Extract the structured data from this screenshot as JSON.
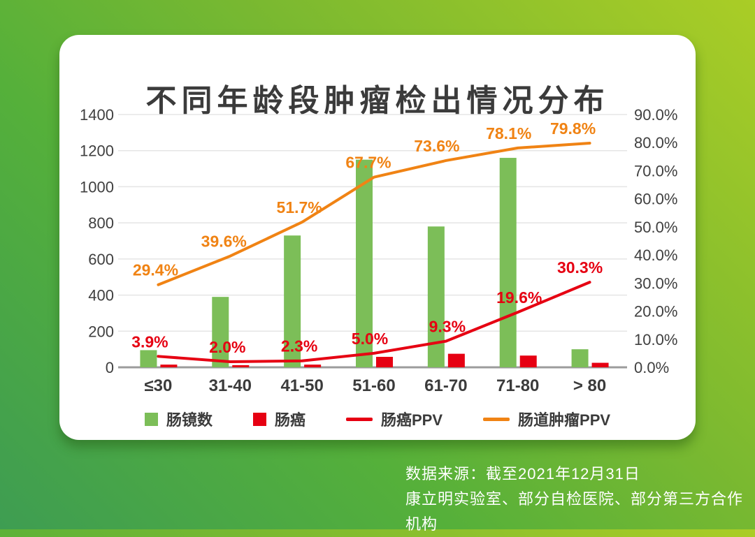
{
  "page": {
    "title": "不同年龄段肿瘤检出情况分布",
    "source_line1": "数据来源：截至2021年12月31日",
    "source_line2": "康立明实验室、部分自检医院、部分第三方合作机构"
  },
  "colors": {
    "background_gradient_start": "#3E9D52",
    "background_gradient_end": "#AACD26",
    "card_background": "#FFFFFF",
    "title_text": "#3B3B3B",
    "axis_text": "#3F3F3F",
    "gridline": "#E5E5E5",
    "baseline": "#9C9C9C",
    "green": "#7CBE58",
    "red": "#E60012",
    "orange": "#F08314"
  },
  "chart_data": {
    "type": "bar",
    "subtype": "combo-bar-line-dual-axis",
    "title": "不同年龄段肿瘤检出情况分布",
    "categories": [
      "≤30",
      "31-40",
      "41-50",
      "51-60",
      "61-70",
      "71-80",
      "> 80"
    ],
    "series": [
      {
        "name": "肠镜数",
        "type": "bar",
        "axis": "left",
        "color": "#7CBE58",
        "values": [
          95,
          390,
          730,
          1150,
          780,
          1160,
          100
        ]
      },
      {
        "name": "肠癌",
        "type": "bar",
        "axis": "left",
        "color": "#E60012",
        "values": [
          15,
          12,
          15,
          58,
          75,
          65,
          25
        ]
      },
      {
        "name": "肠癌PPV",
        "type": "line",
        "axis": "right",
        "color": "#E60012",
        "values": [
          3.9,
          2.0,
          2.3,
          5.0,
          9.3,
          19.6,
          30.3
        ],
        "labels": [
          "3.9%",
          "2.0%",
          "2.3%",
          "5.0%",
          "9.3%",
          "19.6%",
          "30.3%"
        ]
      },
      {
        "name": "肠道肿瘤PPV",
        "type": "line",
        "axis": "right",
        "color": "#F08314",
        "values": [
          29.4,
          39.6,
          51.7,
          67.7,
          73.6,
          78.1,
          79.8
        ],
        "labels": [
          "29.4%",
          "39.6%",
          "51.7%",
          "67.7%",
          "73.6%",
          "78.1%",
          "79.8%"
        ]
      }
    ],
    "left_axis": {
      "min": 0,
      "max": 1400,
      "step": 200,
      "ticks": [
        "0",
        "200",
        "400",
        "600",
        "800",
        "1000",
        "1200",
        "1400"
      ]
    },
    "right_axis": {
      "min": 0,
      "max": 90,
      "step": 10,
      "ticks": [
        "0.0%",
        "10.0%",
        "20.0%",
        "30.0%",
        "40.0%",
        "50.0%",
        "60.0%",
        "70.0%",
        "80.0%",
        "90.0%"
      ]
    },
    "grid": true,
    "legend_position": "bottom",
    "legend": [
      "肠镜数",
      "肠癌",
      "肠癌PPV",
      "肠道肿瘤PPV"
    ]
  }
}
